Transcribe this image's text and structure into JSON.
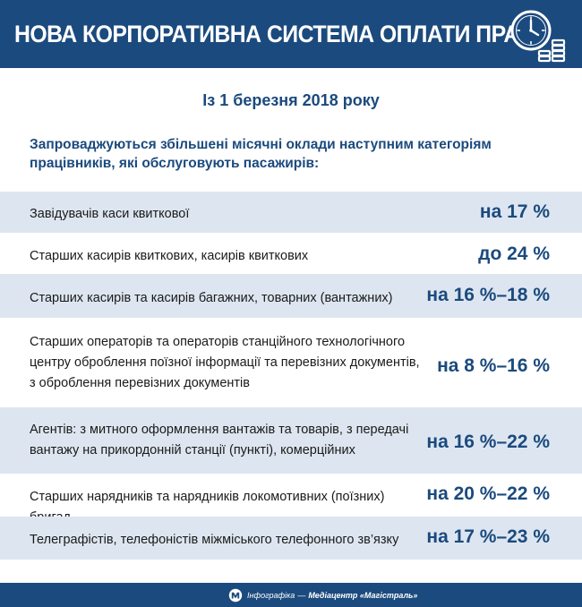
{
  "header": {
    "title": "НОВА КОРПОРАТИВНА СИСТЕМА ОПЛАТИ ПРАЦІ",
    "icon": "clock-coins-icon"
  },
  "subtitle": "Із 1 березня 2018 року",
  "intro": "Запроваджуються збільшені місячні оклади наступним категоріям працівників, які обслуговують пасажирів:",
  "rows": [
    {
      "label": "Завідувачів каси квиткової",
      "value": "на 17 %"
    },
    {
      "label": "Старших касирів квиткових, касирів квиткових",
      "value": "до 24 %"
    },
    {
      "label": "Старших касирів та касирів багажних, товарних (вантажних)",
      "value": "на 16 %–18 %"
    },
    {
      "label": "Старших операторів та операторів станційного технологічного центру оброблення поїзної інформації та перевізних документів, з оброблення перевізних документів",
      "value": "на 8 %–16 %"
    },
    {
      "label": "Агентів: з митного оформлення вантажів та товарів, з передачі вантажу на прикордонній станції (пункті), комерційних",
      "value": "на 16 %–22 %"
    },
    {
      "label": "Старших нарядників та нарядників локомотивних (поїзних) бригад",
      "value": "на 20 %–22 %"
    },
    {
      "label": "Телеграфістів, телефоністів міжміського телефонного зв’язку",
      "value": "на 17 %–23 %"
    }
  ],
  "footer": {
    "label": "Інфографіка",
    "separator": "—",
    "source": "Медіацентр «Магістраль»",
    "logo": "magistral-logo-icon"
  },
  "colors": {
    "brand": "#1b4a7e",
    "row_shade": "#dde6f0",
    "text": "#1a1a1a"
  }
}
